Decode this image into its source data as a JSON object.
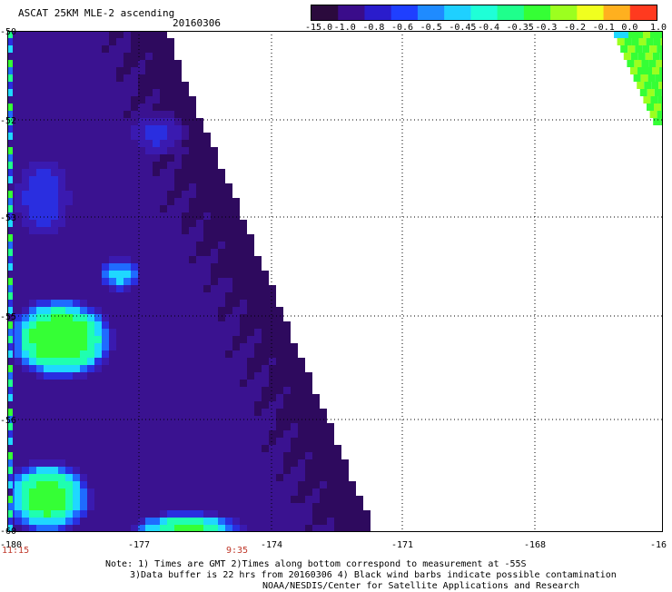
{
  "header": {
    "title": "ASCAT 25KM MLE-2 ascending",
    "date": "20160306"
  },
  "colorbar": {
    "labels": [
      "-15.0",
      "-1.0",
      "-0.8",
      "-0.6",
      "-0.5",
      "-0.45",
      "-0.4",
      "-0.35",
      "-0.3",
      "-0.2",
      "-0.1",
      "0.0",
      "1.0"
    ],
    "colors": [
      "#2b0a3d",
      "#3a0c8a",
      "#2a1ccc",
      "#1f3fff",
      "#1f8bff",
      "#1fd0ff",
      "#1fffd7",
      "#1fff8c",
      "#35ff35",
      "#9cff1f",
      "#f0ff1f",
      "#ffb01f",
      "#ff3a1f"
    ]
  },
  "map": {
    "lat_labels": [
      "-50",
      "-52",
      "-53",
      "-55",
      "-56",
      "-60"
    ],
    "lon_labels": [
      "-180",
      "-177",
      "-174",
      "-171",
      "-168",
      "-16"
    ],
    "time_labels": [
      "11:15",
      "9:35"
    ]
  },
  "notes": {
    "line1": "Note: 1) Times are GMT 2)Times along bottom correspond to measurement at -55S",
    "line2": "3)Data buffer is 22 hrs from 20160306 4) Black wind barbs indicate possible contamination",
    "line3": "NOAA/NESDIS/Center for Satellite Applications and Research"
  }
}
